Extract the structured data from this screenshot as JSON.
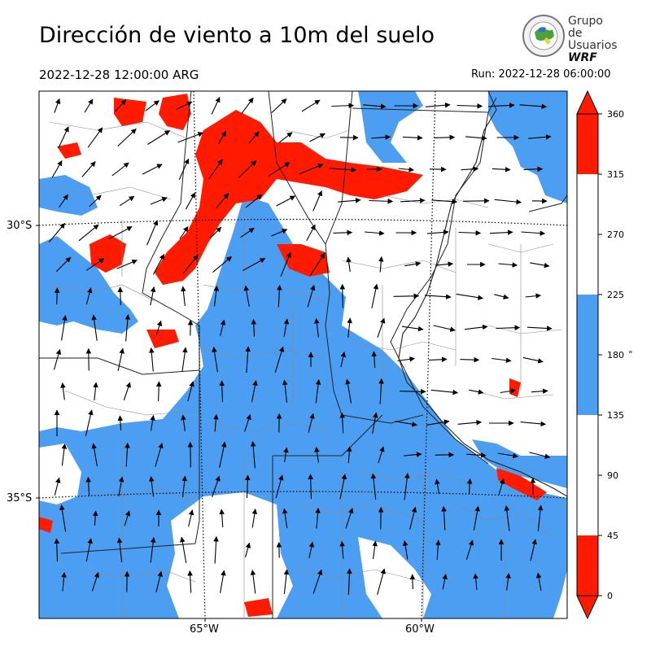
{
  "header": {
    "title": "Dirección de viento a 10m del suelo",
    "valid_time": "2022-12-28 12:00:00 ARG",
    "run_time": "Run: 2022-12-28 06:00:00"
  },
  "logo": {
    "line1": "Grupo de",
    "line2": "Usuarios",
    "line3": "WRF"
  },
  "map": {
    "lat_labels": [
      "30°S",
      "35°S"
    ],
    "lon_labels": [
      "65°W",
      "60°W"
    ]
  },
  "colorbar": {
    "ticks": [
      "360",
      "315",
      "270",
      "225",
      "180",
      "135",
      "90",
      "45",
      "0"
    ],
    "unit": "°",
    "colors": {
      "red": "#ff1a00",
      "blue": "#4c9ef2",
      "white": "#ffffff"
    }
  }
}
